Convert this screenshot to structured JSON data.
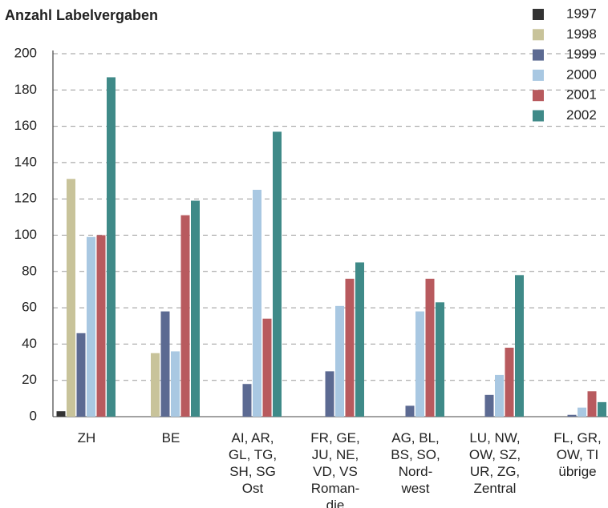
{
  "chart_data": {
    "type": "bar",
    "title": "Anzahl Labelvergaben",
    "categories": [
      "ZH",
      "BE",
      "AI, AR,\nGL, TG,\nSH, SG\nOst",
      "FR, GE,\nJU, NE,\nVD, VS\nRoman-\ndie",
      "AG, BL,\nBS, SO,\nNord-\nwest",
      "LU, NW,\nOW, SZ,\nUR, ZG,\nZentral",
      "FL, GR,\nOW, TI\nübrige"
    ],
    "series": [
      {
        "name": "1997",
        "color": "#333333",
        "values": [
          3,
          null,
          null,
          null,
          null,
          null,
          null
        ]
      },
      {
        "name": "1998",
        "color": "#c8c39a",
        "values": [
          131,
          35,
          null,
          null,
          null,
          null,
          null
        ]
      },
      {
        "name": "1999",
        "color": "#5c6a92",
        "values": [
          46,
          58,
          18,
          25,
          6,
          12,
          1
        ]
      },
      {
        "name": "2000",
        "color": "#a9c8e2",
        "values": [
          99,
          36,
          125,
          61,
          58,
          23,
          5
        ]
      },
      {
        "name": "2001",
        "color": "#b85a5e",
        "values": [
          100,
          111,
          54,
          76,
          76,
          38,
          14
        ]
      },
      {
        "name": "2002",
        "color": "#3f8a88",
        "values": [
          187,
          119,
          157,
          85,
          63,
          78,
          8
        ]
      }
    ],
    "ylim": [
      0,
      200
    ],
    "yticks": [
      0,
      20,
      40,
      60,
      80,
      100,
      120,
      140,
      160,
      180,
      200
    ],
    "grid": true
  }
}
